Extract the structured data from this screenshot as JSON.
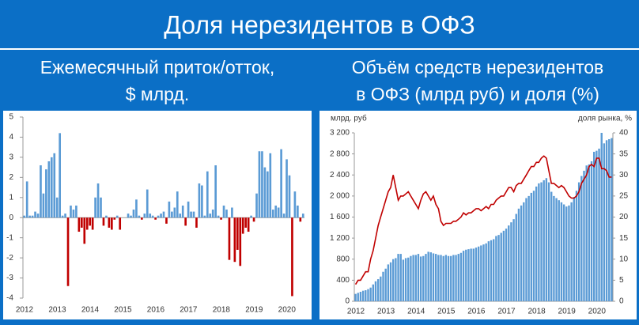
{
  "title": "Доля нерезидентов в ОФЗ",
  "chart_data": [
    {
      "type": "bar",
      "title": [
        "Ежемесячный приток/отток,",
        "$ млрд."
      ],
      "categories": [
        "2012",
        null,
        null,
        null,
        null,
        null,
        null,
        null,
        null,
        null,
        null,
        null,
        "2013",
        null,
        null,
        null,
        null,
        null,
        null,
        null,
        null,
        null,
        null,
        null,
        "2014",
        null,
        null,
        null,
        null,
        null,
        null,
        null,
        null,
        null,
        null,
        null,
        "2015",
        null,
        null,
        null,
        null,
        null,
        null,
        null,
        null,
        null,
        null,
        null,
        "2016",
        null,
        null,
        null,
        null,
        null,
        null,
        null,
        null,
        null,
        null,
        null,
        "2017",
        null,
        null,
        null,
        null,
        null,
        null,
        null,
        null,
        null,
        null,
        null,
        "2018",
        null,
        null,
        null,
        null,
        null,
        null,
        null,
        null,
        null,
        null,
        null,
        "2019",
        null,
        null,
        null,
        null,
        null,
        null,
        null,
        null,
        null,
        null,
        null,
        "2020",
        null,
        null,
        null,
        null,
        null,
        null
      ],
      "values": [
        0.1,
        1.8,
        0.1,
        0.1,
        0.3,
        0.2,
        2.6,
        1.2,
        2.4,
        2.8,
        3.0,
        3.2,
        1.0,
        4.2,
        0.1,
        0.2,
        -3.4,
        0.6,
        0.4,
        0.6,
        -0.7,
        -0.5,
        -1.3,
        -0.6,
        -0.4,
        -0.6,
        1.0,
        1.7,
        1.0,
        -0.4,
        0.1,
        -0.5,
        -0.6,
        -0.1,
        0.1,
        -0.6,
        0.0,
        0.0,
        0.2,
        0.1,
        0.4,
        0.9,
        0.1,
        -0.1,
        0.2,
        1.4,
        0.2,
        0.1,
        -0.1,
        0.1,
        0.2,
        0.3,
        -0.3,
        0.8,
        0.3,
        0.5,
        1.3,
        0.2,
        0.6,
        -0.4,
        0.8,
        0.3,
        0.3,
        -0.5,
        1.7,
        1.6,
        0.1,
        2.3,
        0.2,
        0.4,
        2.6,
        0.1,
        -0.1,
        0.6,
        0.4,
        -2.1,
        0.5,
        -2.2,
        -1.6,
        -2.4,
        -0.8,
        -0.5,
        -0.7,
        0.1,
        -0.2,
        1.2,
        3.3,
        3.3,
        2.5,
        2.3,
        3.2,
        0.4,
        0.6,
        0.5,
        3.4,
        0.2,
        2.9,
        2.1,
        -3.9,
        1.3,
        0.6,
        -0.2,
        0.2
      ],
      "color": "#5b9bd5",
      "negative_color": "#c00000",
      "ylim": [
        -4,
        5
      ],
      "yticks": [
        5,
        4,
        3,
        2,
        1,
        0,
        -1,
        -2,
        -3,
        -4
      ]
    },
    {
      "type": "bar_line",
      "title": [
        "Объём средств нерезидентов",
        "в ОФЗ (млрд руб) и доля (%)"
      ],
      "y_label": "млрд. руб",
      "y2_label": "доля рынка, %",
      "categories": [
        "2012",
        null,
        null,
        null,
        null,
        null,
        null,
        null,
        null,
        null,
        null,
        null,
        "2013",
        null,
        null,
        null,
        null,
        null,
        null,
        null,
        null,
        null,
        null,
        null,
        "2014",
        null,
        null,
        null,
        null,
        null,
        null,
        null,
        null,
        null,
        null,
        null,
        "2015",
        null,
        null,
        null,
        null,
        null,
        null,
        null,
        null,
        null,
        null,
        null,
        "2016",
        null,
        null,
        null,
        null,
        null,
        null,
        null,
        null,
        null,
        null,
        null,
        "2017",
        null,
        null,
        null,
        null,
        null,
        null,
        null,
        null,
        null,
        null,
        null,
        "2018",
        null,
        null,
        null,
        null,
        null,
        null,
        null,
        null,
        null,
        null,
        null,
        "2019",
        null,
        null,
        null,
        null,
        null,
        null,
        null,
        null,
        null,
        null,
        null,
        "2020",
        null,
        null,
        null,
        null,
        null,
        null
      ],
      "series": [
        {
          "type": "bar",
          "color": "#5b9bd5",
          "values": [
            140,
            160,
            180,
            200,
            210,
            230,
            260,
            320,
            380,
            420,
            470,
            560,
            620,
            700,
            740,
            800,
            820,
            900,
            900,
            790,
            820,
            830,
            860,
            880,
            880,
            900,
            850,
            860,
            900,
            940,
            930,
            910,
            900,
            880,
            880,
            860,
            880,
            860,
            860,
            880,
            880,
            900,
            920,
            960,
            980,
            990,
            1000,
            1000,
            1020,
            1040,
            1060,
            1080,
            1100,
            1140,
            1160,
            1180,
            1240,
            1260,
            1300,
            1340,
            1380,
            1440,
            1500,
            1560,
            1660,
            1760,
            1820,
            1880,
            1960,
            2000,
            2060,
            2100,
            2180,
            2240,
            2260,
            2300,
            2340,
            2260,
            2080,
            2000,
            1960,
            1920,
            1880,
            1840,
            1800,
            1820,
            1880,
            1980,
            2100,
            2260,
            2380,
            2480,
            2580,
            2600,
            2660,
            2840,
            2860,
            2900,
            3200,
            3000,
            3060,
            3080,
            3100
          ]
        },
        {
          "type": "line",
          "axis": "y2",
          "color": "#c00000",
          "values": [
            4,
            5,
            5,
            6,
            7,
            7,
            10,
            12,
            15,
            18,
            20,
            22,
            24,
            26,
            27,
            30,
            27,
            24,
            25,
            25,
            25.5,
            26,
            25,
            24,
            23,
            22,
            24,
            25.5,
            26,
            25,
            24,
            25,
            23,
            22,
            19,
            18,
            18.5,
            18.5,
            18.5,
            19,
            19,
            19.5,
            20,
            21,
            20.5,
            21,
            21,
            21.5,
            22,
            22,
            21.5,
            22,
            22.5,
            22,
            23,
            23,
            24,
            24.5,
            25,
            25,
            26,
            27,
            27,
            26,
            27.5,
            28,
            28,
            29,
            30,
            31,
            32,
            32,
            33,
            33,
            34,
            34.5,
            34,
            31,
            28,
            28,
            27.5,
            27,
            27.5,
            27,
            26,
            25,
            24.5,
            24.5,
            25,
            26,
            28,
            29,
            30,
            32,
            32.5,
            32,
            34,
            34,
            31.5,
            31.5,
            31,
            29.5,
            29.5
          ]
        }
      ],
      "ylim": [
        0,
        3200
      ],
      "yticks": [
        0,
        400,
        800,
        {
          "value": 1200,
          "label": "1 200"
        },
        {
          "value": 1600,
          "label": "1 600"
        },
        {
          "value": 2000,
          "label": "2 000"
        },
        {
          "value": 2400,
          "label": "2 400"
        },
        {
          "value": 2800,
          "label": "2 800"
        },
        {
          "value": 3200,
          "label": "3 200"
        }
      ],
      "y2lim": [
        0,
        40
      ],
      "y2ticks": [
        0,
        5,
        10,
        15,
        20,
        25,
        30,
        35,
        40
      ]
    }
  ]
}
